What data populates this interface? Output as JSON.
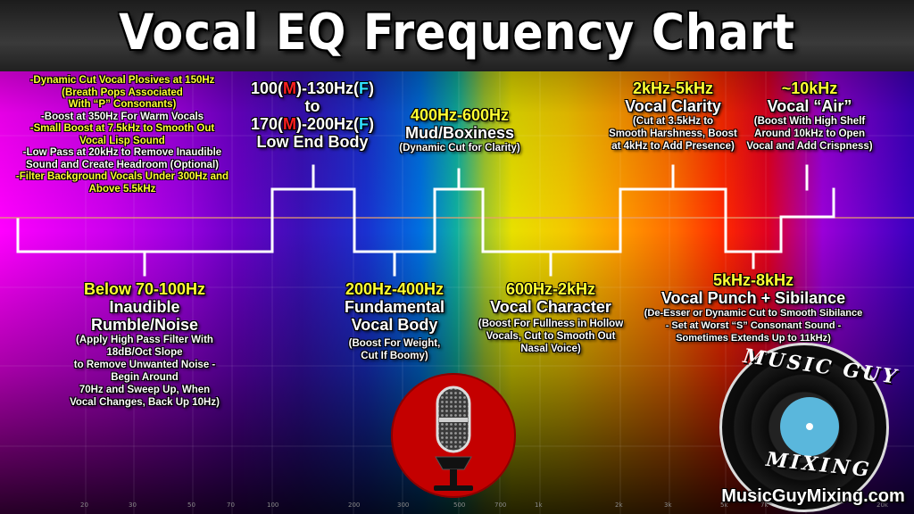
{
  "title": "Vocal EQ Frequency Chart",
  "tips": [
    {
      "text": "-Dynamic Cut Vocal Plosives at 150Hz",
      "color": "#ffff33"
    },
    {
      "text": "(Breath Pops Associated",
      "color": "#ffff33"
    },
    {
      "text": "With “P” Consonants)",
      "color": "#ffff33"
    },
    {
      "text": "-Boost at 350Hz For Warm Vocals",
      "color": "#ffffff"
    },
    {
      "text": "-Small Boost at 7.5kHz to Smooth Out",
      "color": "#ffff33"
    },
    {
      "text": "Vocal Lisp Sound",
      "color": "#ffff33"
    },
    {
      "text": "-Low Pass at 20kHz to Remove Inaudible",
      "color": "#ffffff"
    },
    {
      "text": "Sound and Create Headroom (Optional)",
      "color": "#ffffff"
    },
    {
      "text": "-Filter Background Vocals Under 300Hz and",
      "color": "#ffff33"
    },
    {
      "text": "Above 5.5kHz",
      "color": "#ffff33"
    }
  ],
  "bands": {
    "rumble": {
      "title": "Below 70-100Hz",
      "subtitle1": "Inaudible",
      "subtitle2": "Rumble/Noise",
      "desc": [
        "(Apply High Pass Filter With",
        "18dB/Oct Slope",
        "to Remove Unwanted Noise -",
        "Begin Around",
        "70Hz and Sweep Up, When",
        "Vocal Changes, Back Up 10Hz)"
      ]
    },
    "low_end": {
      "line1_a": "100(",
      "line1_m": "M",
      "line1_b": ")-130Hz(",
      "line1_f": "F",
      "line1_c": ")",
      "line2": "to",
      "line3_a": "170(",
      "line3_m": "M",
      "line3_b": ")-200Hz(",
      "line3_f": "F",
      "line3_c": ")",
      "subtitle": "Low End Body"
    },
    "fundamental": {
      "title": "200Hz-400Hz",
      "subtitle1": "Fundamental",
      "subtitle2": "Vocal Body",
      "desc": [
        "(Boost For Weight,",
        "Cut If Boomy)"
      ]
    },
    "mud": {
      "title": "400Hz-600Hz",
      "subtitle": "Mud/Boxiness",
      "desc": [
        "(Dynamic Cut for Clarity)"
      ]
    },
    "character": {
      "title": "600Hz-2kHz",
      "subtitle": "Vocal Character",
      "desc": [
        "(Boost For Fullness in Hollow",
        "Vocals, Cut to Smooth Out",
        "Nasal Voice)"
      ]
    },
    "clarity": {
      "title": "2kHz-5kHz",
      "subtitle": "Vocal Clarity",
      "desc": [
        "(Cut at 3.5kHz to",
        "Smooth Harshness, Boost",
        "at 4kHz to Add Presence)"
      ]
    },
    "sibilance": {
      "title": "5kHz-8kHz",
      "subtitle": "Vocal Punch + Sibilance",
      "desc": [
        "(De-Esser or Dynamic Cut to Smooth Sibilance",
        "- Set at Worst “S” Consonant Sound -",
        "Sometimes Extends Up to 11kHz)"
      ]
    },
    "air": {
      "title": "~10kHz",
      "subtitle": "Vocal “Air”",
      "desc": [
        "(Boost With High Shelf",
        "Around 10kHz  to Open",
        "Vocal and Add Crispness)"
      ]
    }
  },
  "axis_ticks": [
    "20",
    "30",
    "50",
    "70",
    "100",
    "200",
    "300",
    "500",
    "700",
    "1k",
    "2k",
    "3k",
    "5k",
    "7k",
    "10k",
    "20k"
  ],
  "logo": {
    "word1": "MUSIC GUY",
    "word2": "MIXING",
    "website": "MusicGuyMixing.com"
  },
  "colors": {
    "highlight": "#ffff33",
    "male": "#ff2020",
    "female": "#30e0ff",
    "mic_circle": "#c40000",
    "record_label": "#5ab7dc"
  }
}
